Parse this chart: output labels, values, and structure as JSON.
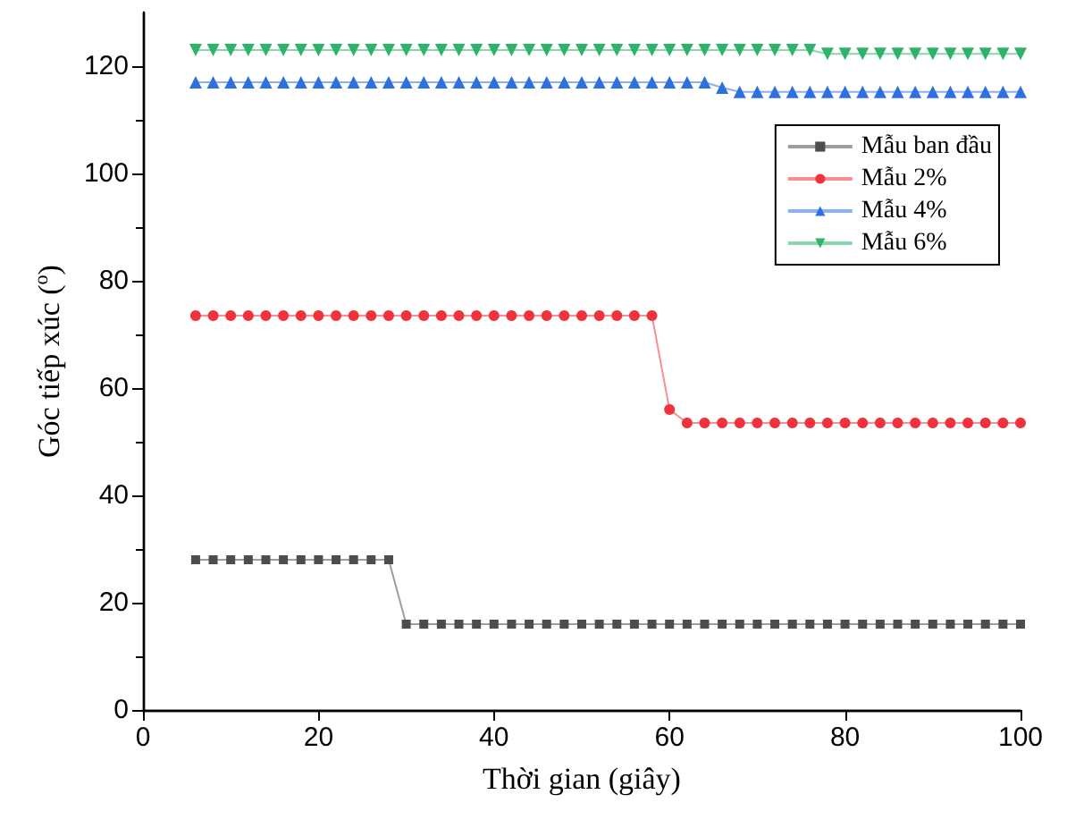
{
  "chart_data": {
    "type": "line",
    "xlabel": "Thời gian (giây)",
    "ylabel": "Góc tiếp xúc ($^{o}$)",
    "x": [
      6,
      8,
      10,
      12,
      14,
      16,
      18,
      20,
      22,
      24,
      26,
      28,
      30,
      32,
      34,
      36,
      38,
      40,
      42,
      44,
      46,
      48,
      50,
      52,
      54,
      56,
      58,
      60,
      62,
      64,
      66,
      68,
      70,
      72,
      74,
      76,
      78,
      80,
      82,
      84,
      86,
      88,
      90,
      92,
      94,
      96,
      98,
      100
    ],
    "series": [
      {
        "name": "Mẫu ban đầu",
        "color": "#4d4d4d",
        "marker": "square",
        "values": [
          28,
          28,
          28,
          28,
          28,
          28,
          28,
          28,
          28,
          28,
          28,
          28,
          16,
          16,
          16,
          16,
          16,
          16,
          16,
          16,
          16,
          16,
          16,
          16,
          16,
          16,
          16,
          16,
          16,
          16,
          16,
          16,
          16,
          16,
          16,
          16,
          16,
          16,
          16,
          16,
          16,
          16,
          16,
          16,
          16,
          16,
          16,
          16
        ]
      },
      {
        "name": "Mẫu 2%",
        "color": "#f0323c",
        "marker": "circle",
        "values": [
          73.5,
          73.5,
          73.5,
          73.5,
          73.5,
          73.5,
          73.5,
          73.5,
          73.5,
          73.5,
          73.5,
          73.5,
          73.5,
          73.5,
          73.5,
          73.5,
          73.5,
          73.5,
          73.5,
          73.5,
          73.5,
          73.5,
          73.5,
          73.5,
          73.5,
          73.5,
          73.5,
          56,
          53.5,
          53.5,
          53.5,
          53.5,
          53.5,
          53.5,
          53.5,
          53.5,
          53.5,
          53.5,
          53.5,
          53.5,
          53.5,
          53.5,
          53.5,
          53.5,
          53.5,
          53.5,
          53.5,
          53.5
        ]
      },
      {
        "name": "Mẫu 4%",
        "color": "#2f6fe0",
        "marker": "triangle",
        "values": [
          117,
          117,
          117,
          117,
          117,
          117,
          117,
          117,
          117,
          117,
          117,
          117,
          117,
          117,
          117,
          117,
          117,
          117,
          117,
          117,
          117,
          117,
          117,
          117,
          117,
          117,
          117,
          117,
          117,
          117,
          116,
          115.2,
          115.2,
          115.2,
          115.2,
          115.2,
          115.2,
          115.2,
          115.2,
          115.2,
          115.2,
          115.2,
          115.2,
          115.2,
          115.2,
          115.2,
          115.2,
          115.2
        ]
      },
      {
        "name": "Mẫu 6%",
        "color": "#2eb36b",
        "marker": "triangle-down",
        "values": [
          123,
          123,
          123,
          123,
          123,
          123,
          123,
          123,
          123,
          123,
          123,
          123,
          123,
          123,
          123,
          123,
          123,
          123,
          123,
          123,
          123,
          123,
          123,
          123,
          123,
          123,
          123,
          123,
          123,
          123,
          123,
          123,
          123,
          123,
          123,
          123,
          122.3,
          122.3,
          122.3,
          122.3,
          122.3,
          122.3,
          122.3,
          122.3,
          122.3,
          122.3,
          122.3,
          122.3
        ]
      }
    ],
    "xlim": [
      0,
      100
    ],
    "xticks": [
      0,
      20,
      40,
      60,
      80,
      100
    ],
    "ylim": [
      0,
      130
    ],
    "yticks": [
      0,
      20,
      40,
      60,
      80,
      100,
      120
    ],
    "grid": false,
    "legend": "top right"
  }
}
